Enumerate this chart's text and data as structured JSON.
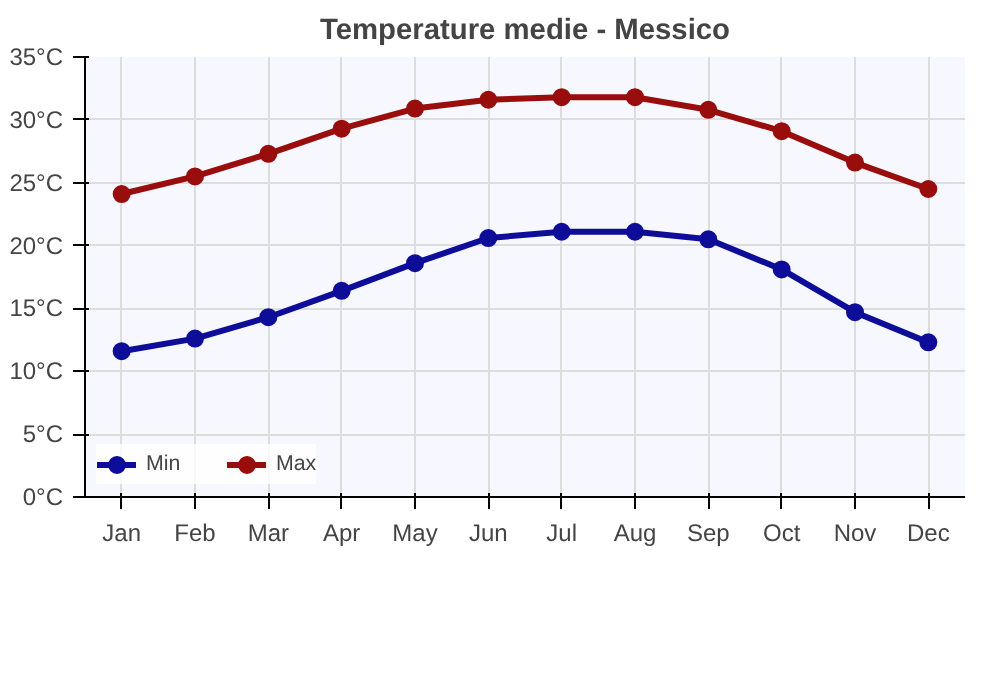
{
  "chart_data": {
    "type": "line",
    "title": "Temperature medie - Messico",
    "categories": [
      "Jan",
      "Feb",
      "Mar",
      "Apr",
      "May",
      "Jun",
      "Jul",
      "Aug",
      "Sep",
      "Oct",
      "Nov",
      "Dec"
    ],
    "series": [
      {
        "name": "Min",
        "color": "#0d0d99",
        "values": [
          11.6,
          12.6,
          14.3,
          16.4,
          18.6,
          20.6,
          21.1,
          21.1,
          20.5,
          18.1,
          14.7,
          12.3
        ]
      },
      {
        "name": "Max",
        "color": "#990d0d",
        "values": [
          24.1,
          25.5,
          27.3,
          29.3,
          30.9,
          31.6,
          31.8,
          31.8,
          30.8,
          29.1,
          26.6,
          24.5
        ]
      }
    ],
    "ylim": [
      0,
      35
    ],
    "yticks": [
      {
        "value": 0,
        "label": "0°C"
      },
      {
        "value": 5,
        "label": "5°C"
      },
      {
        "value": 10,
        "label": "10°C"
      },
      {
        "value": 15,
        "label": "15°C"
      },
      {
        "value": 20,
        "label": "20°C"
      },
      {
        "value": 25,
        "label": "25°C"
      },
      {
        "value": 30,
        "label": "30°C"
      },
      {
        "value": 35,
        "label": "35°C"
      }
    ],
    "grid": true,
    "legend": "bottom left",
    "marker": "circle",
    "line_style": "solid"
  }
}
